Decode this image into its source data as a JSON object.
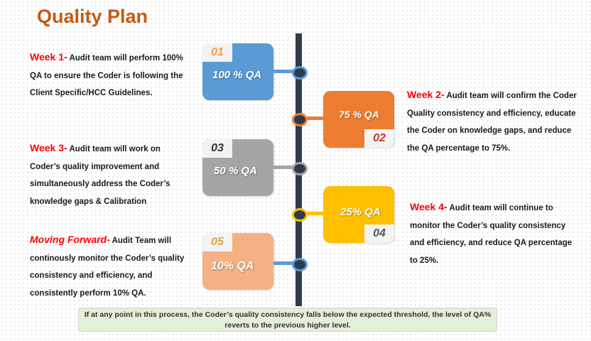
{
  "title": "Quality Plan",
  "colors": {
    "title": "#c55a11",
    "week_label": "#ff0000",
    "timeline": "#2e3a4a",
    "blue": "#5b9bd5",
    "orange": "#ed7d31",
    "gray": "#a5a5a5",
    "yellow": "#ffc000",
    "peach": "#f4b183",
    "note_bg": "#e2efd9"
  },
  "stages": [
    {
      "num": "01",
      "qa": "100 % QA",
      "label": "Week 1-",
      "text": "Audit team will perform 100% QA to ensure the Coder is following the Client Specific/HCC Guidelines."
    },
    {
      "num": "02",
      "qa": "75 % QA",
      "label": "Week 2-",
      "text": "Audit team will confirm the Coder Quality consistency and efficiency, educate the Coder on knowledge gaps, and reduce the QA percentage to 75%."
    },
    {
      "num": "03",
      "qa": "50 % QA",
      "label": "Week 3-",
      "text": "Audit team will work on Coder’s quality improvement and simultaneously address the Coder’s knowledge gaps & Calibration"
    },
    {
      "num": "04",
      "qa": "25% QA",
      "label": "Week 4-",
      "text": "Audit team will continue to monitor the Coder’s quality consistency and efficiency, and reduce QA percentage to 25%."
    },
    {
      "num": "05",
      "qa": "10% QA",
      "label": "Moving Forward-",
      "text": "Audit Team will continously monitor the Coder’s quality consistency and efficiency, and consistently perform 10% QA."
    }
  ],
  "note": "If at any point in this process, the Coder’s quality consistency falls below the expected threshold, the level of QA% reverts to the previous higher level."
}
